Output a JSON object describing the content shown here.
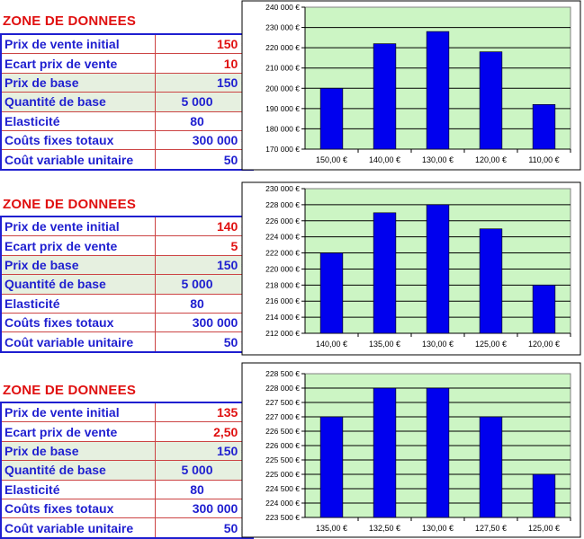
{
  "sections": [
    {
      "zone_title": "ZONE DE DONNEES",
      "rows": [
        {
          "label": "Prix de vente initial",
          "value": "150 €"
        },
        {
          "label": "Ecart prix de vente",
          "value": "10 €"
        },
        {
          "label": "Prix de base",
          "value": "150 €"
        },
        {
          "label": "Quantité de base",
          "value": "5 000"
        },
        {
          "label": "Elasticité",
          "value": "80"
        },
        {
          "label": "Coûts fixes totaux",
          "value": "300 000 €"
        },
        {
          "label": "Coût variable unitaire",
          "value": "50 €"
        }
      ]
    },
    {
      "zone_title": "ZONE DE DONNEES",
      "rows": [
        {
          "label": "Prix de vente initial",
          "value": "140 €"
        },
        {
          "label": "Ecart prix de vente",
          "value": "5 €"
        },
        {
          "label": "Prix de base",
          "value": "150 €"
        },
        {
          "label": "Quantité de base",
          "value": "5 000"
        },
        {
          "label": "Elasticité",
          "value": "80"
        },
        {
          "label": "Coûts fixes totaux",
          "value": "300 000 €"
        },
        {
          "label": "Coût variable unitaire",
          "value": "50 €"
        }
      ]
    },
    {
      "zone_title": "ZONE DE DONNEES",
      "rows": [
        {
          "label": "Prix de vente initial",
          "value": "135 €"
        },
        {
          "label": "Ecart prix de vente",
          "value": "2,50 €"
        },
        {
          "label": "Prix de base",
          "value": "150 €"
        },
        {
          "label": "Quantité de base",
          "value": "5 000"
        },
        {
          "label": "Elasticité",
          "value": "80"
        },
        {
          "label": "Coûts fixes totaux",
          "value": "300 000 €"
        },
        {
          "label": "Coût variable unitaire",
          "value": "50 €"
        }
      ]
    }
  ],
  "colors": {
    "plot_bg": "#ccf5c4",
    "bar": "#0000ee",
    "label_text": "#1f1fd0",
    "emphasis_text": "#e01010"
  },
  "chart_data": [
    {
      "type": "bar",
      "categories": [
        "150,00 €",
        "140,00 €",
        "130,00 €",
        "120,00 €",
        "110,00 €"
      ],
      "values": [
        200000,
        222000,
        228000,
        218000,
        192000
      ],
      "ylim": [
        170000,
        240000
      ],
      "yticks": [
        "170 000 €",
        "180 000 €",
        "190 000 €",
        "200 000 €",
        "210 000 €",
        "220 000 €",
        "230 000 €",
        "240 000 €"
      ],
      "grid": true,
      "legend": "none"
    },
    {
      "type": "bar",
      "categories": [
        "140,00 €",
        "135,00 €",
        "130,00 €",
        "125,00 €",
        "120,00 €"
      ],
      "values": [
        222000,
        227000,
        228000,
        225000,
        218000
      ],
      "ylim": [
        212000,
        230000
      ],
      "yticks": [
        "212 000 €",
        "214 000 €",
        "216 000 €",
        "218 000 €",
        "220 000 €",
        "222 000 €",
        "224 000 €",
        "226 000 €",
        "228 000 €",
        "230 000 €"
      ],
      "grid": true,
      "legend": "none"
    },
    {
      "type": "bar",
      "categories": [
        "135,00 €",
        "132,50 €",
        "130,00 €",
        "127,50 €",
        "125,00 €"
      ],
      "values": [
        227000,
        228000,
        228000,
        227000,
        225000
      ],
      "ylim": [
        223500,
        228500
      ],
      "yticks": [
        "223 500 €",
        "224 000 €",
        "224 500 €",
        "225 000 €",
        "225 500 €",
        "226 000 €",
        "226 500 €",
        "227 000 €",
        "227 500 €",
        "228 000 €",
        "228 500 €"
      ],
      "grid": true,
      "legend": "none"
    }
  ]
}
